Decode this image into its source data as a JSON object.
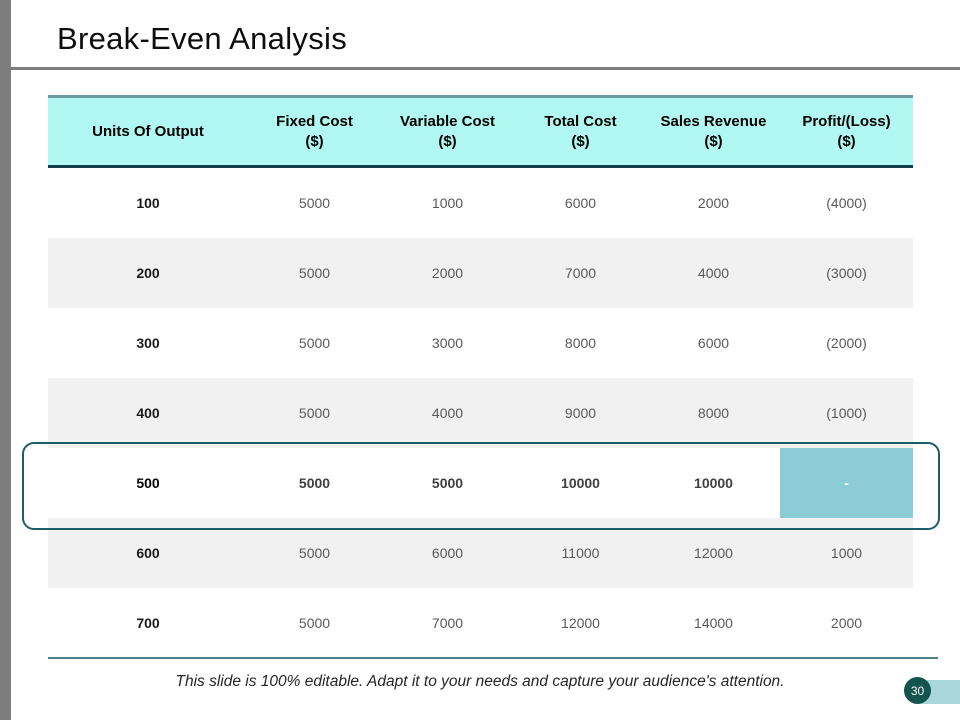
{
  "slide": {
    "title": "Break-Even Analysis",
    "footer_note": "This slide is 100% editable. Adapt it to your needs and capture your audience's attention.",
    "page_number": "30"
  },
  "colors": {
    "header_bg": "#b1f7f2",
    "header_top_border": "#6d9aa0",
    "header_bottom_border": "#123f4a",
    "alt_row_bg": "#f1f1f1",
    "break_even_cell_bg": "#8bccd7",
    "highlight_border": "#1c5d68",
    "accent_gray_bar": "#7d7d7d",
    "table_bottom_rule": "#4e7f88",
    "badge_circle": "#14534e",
    "badge_pill": "#a9d6da"
  },
  "table": {
    "columns": [
      {
        "label": "Units Of Output",
        "unit": ""
      },
      {
        "label": "Fixed Cost",
        "unit": "($)"
      },
      {
        "label": "Variable Cost",
        "unit": "($)"
      },
      {
        "label": "Total Cost",
        "unit": "($)"
      },
      {
        "label": "Sales Revenue",
        "unit": "($)"
      },
      {
        "label": "Profit/(Loss)",
        "unit": "($)"
      }
    ],
    "rows": [
      {
        "cells": [
          "100",
          "5000",
          "1000",
          "6000",
          "2000",
          "(4000)"
        ]
      },
      {
        "cells": [
          "200",
          "5000",
          "2000",
          "7000",
          "4000",
          "(3000)"
        ]
      },
      {
        "cells": [
          "300",
          "5000",
          "3000",
          "8000",
          "6000",
          "(2000)"
        ]
      },
      {
        "cells": [
          "400",
          "5000",
          "4000",
          "9000",
          "8000",
          "(1000)"
        ]
      },
      {
        "cells": [
          "500",
          "5000",
          "5000",
          "10000",
          "10000",
          "-"
        ],
        "highlighted": true
      },
      {
        "cells": [
          "600",
          "5000",
          "6000",
          "11000",
          "12000",
          "1000"
        ]
      },
      {
        "cells": [
          "700",
          "5000",
          "7000",
          "12000",
          "14000",
          "2000"
        ]
      }
    ]
  }
}
